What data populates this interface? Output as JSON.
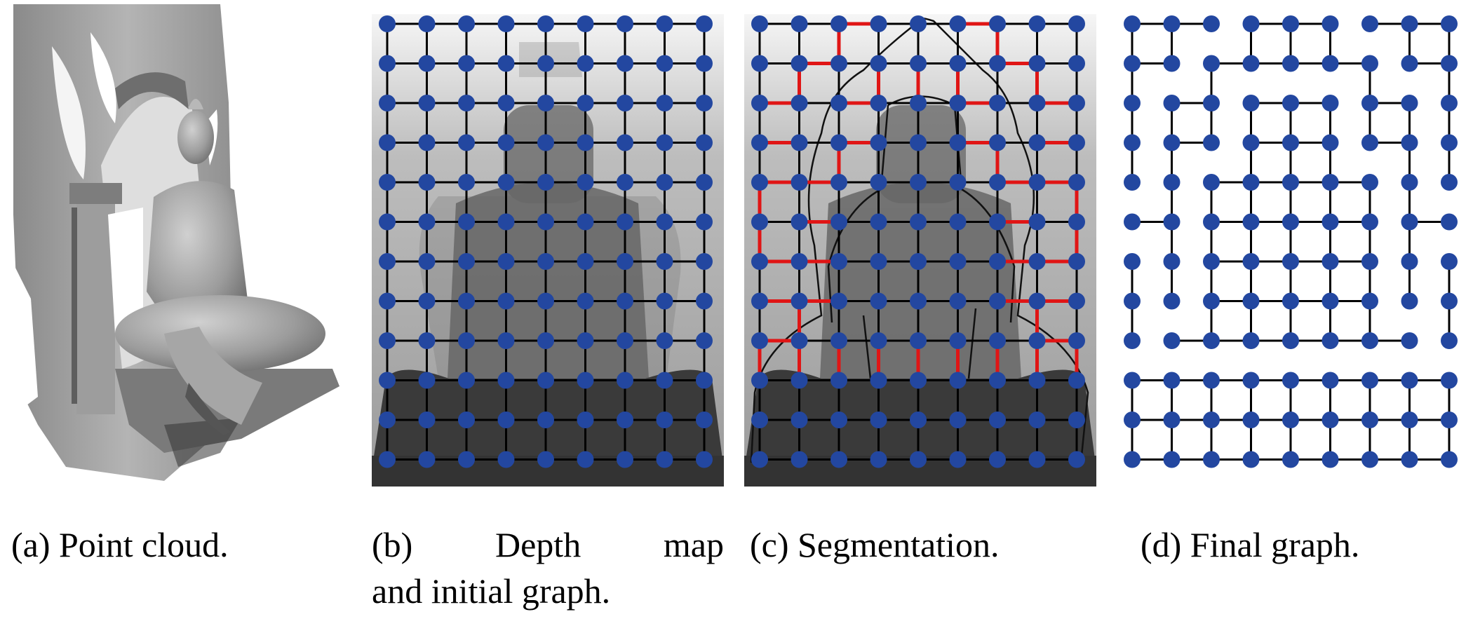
{
  "captions": {
    "a": "(a) Point cloud.",
    "b_line1": [
      "(b)",
      "Depth",
      "map"
    ],
    "b_line2": "and initial graph.",
    "c": "(c) Segmentation.",
    "d": "(d) Final graph."
  },
  "graph": {
    "cols": 9,
    "rows": 12
  },
  "colors": {
    "node": "#2347a0",
    "edge": "#000000",
    "cut_edge": "#e01515"
  }
}
